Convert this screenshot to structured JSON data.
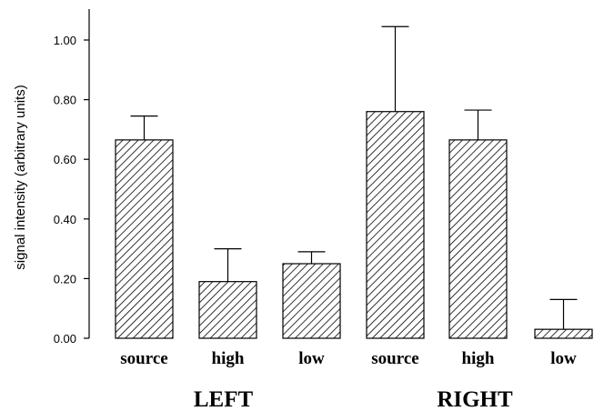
{
  "chart_data": {
    "type": "bar",
    "title": "",
    "ylabel": "signal intensity (arbitrary units)",
    "xlabel": "",
    "ylim": [
      0,
      1.1
    ],
    "yticks": [
      "0.00",
      "0.20",
      "0.40",
      "0.60",
      "0.80",
      "1.00"
    ],
    "groups": [
      {
        "label": "LEFT",
        "categories": [
          "source",
          "high",
          "low"
        ]
      },
      {
        "label": "RIGHT",
        "categories": [
          "source",
          "high",
          "low"
        ]
      }
    ],
    "categories": [
      "source",
      "high",
      "low",
      "source",
      "high",
      "low"
    ],
    "values": [
      0.665,
      0.19,
      0.25,
      0.76,
      0.665,
      0.03
    ],
    "errors": [
      0.08,
      0.11,
      0.04,
      0.285,
      0.1,
      0.1
    ],
    "fill": "diagonal-hatch",
    "bar_color": "#000000",
    "grid": false,
    "legend": "none"
  }
}
